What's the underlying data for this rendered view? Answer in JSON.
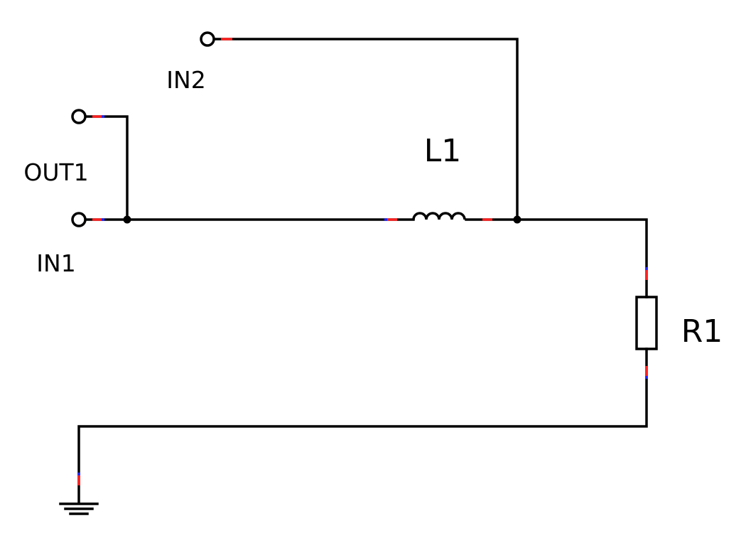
{
  "labels": {
    "in2": "IN2",
    "out1": "OUT1",
    "in1": "IN1",
    "l1": "L1",
    "r1": "R1"
  },
  "colors": {
    "wire": "#000000",
    "pin_marker_red": "#ff2020",
    "pin_marker_blue": "#2020ff"
  }
}
